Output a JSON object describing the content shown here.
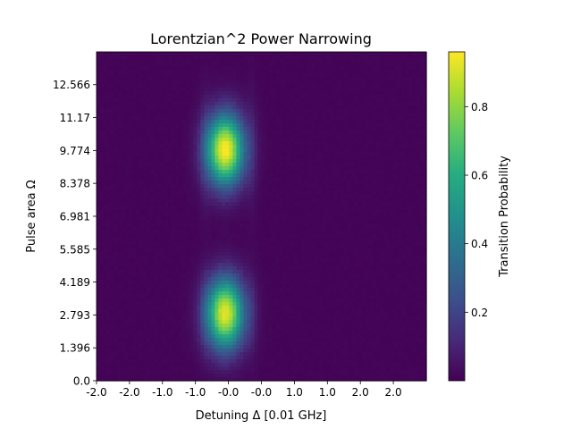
{
  "chart_data": {
    "type": "heatmap",
    "title": "Lorentzian^2 Power Narrowing",
    "xlabel": "Detuning Δ [0.01 GHz]",
    "ylabel": "Pulse area Ω",
    "colorbar_label": "Transition Probability",
    "colormap": "viridis",
    "x_tick_labels": [
      "-2.0",
      "-2.0",
      "-1.0",
      "-1.0",
      "-0.0",
      "-0.0",
      "1.0",
      "1.0",
      "2.0",
      "2.0"
    ],
    "y_tick_labels": [
      "0.0",
      "1.396",
      "2.793",
      "4.189",
      "5.585",
      "6.981",
      "8.378",
      "9.774",
      "11.17",
      "12.566"
    ],
    "y_tick_values": [
      0.0,
      1.396,
      2.793,
      4.189,
      5.585,
      6.981,
      8.378,
      9.774,
      11.17,
      12.566
    ],
    "x_range": [
      -2.0,
      3.0
    ],
    "y_range": [
      0.0,
      13.96
    ],
    "colorbar_ticks": [
      0.2,
      0.4,
      0.6,
      0.8
    ],
    "colorbar_tick_labels": [
      "0.2",
      "0.4",
      "0.6",
      "0.8"
    ],
    "colorbar_range": [
      0.0,
      0.96
    ],
    "features": [
      {
        "x_center": -0.05,
        "y_center": 2.85,
        "peak_probability": 0.92
      },
      {
        "x_center": -0.05,
        "y_center": 9.8,
        "peak_probability": 0.96
      }
    ],
    "grid": false
  }
}
